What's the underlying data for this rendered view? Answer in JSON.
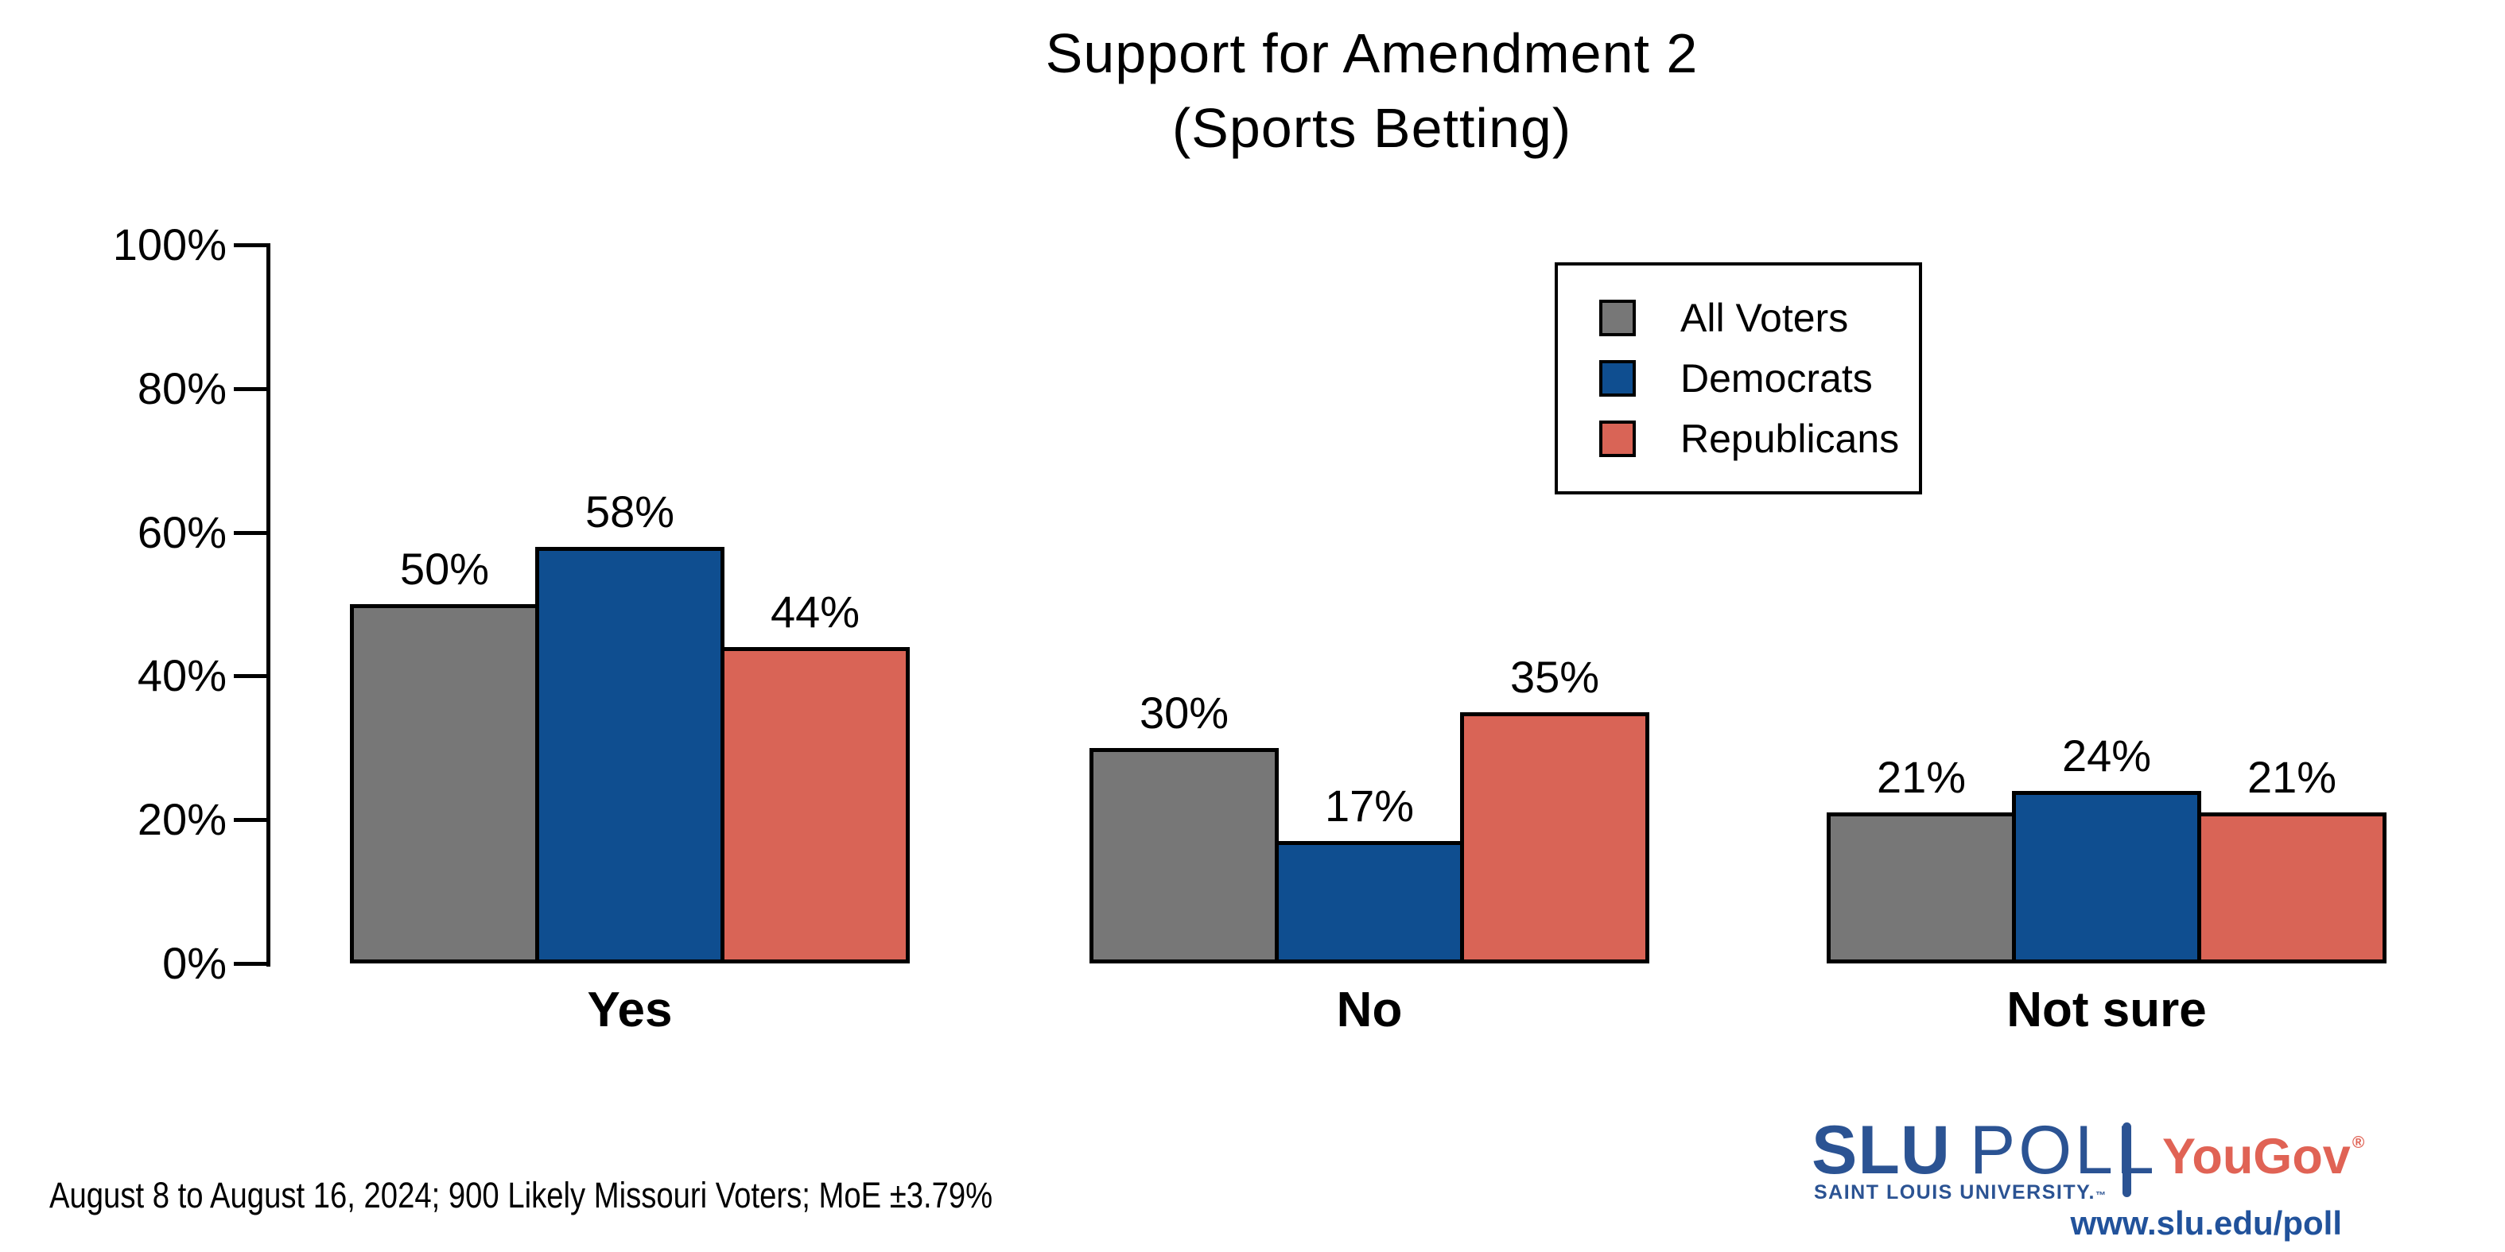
{
  "title": {
    "line1": "Support for Amendment 2",
    "line2": "(Sports Betting)"
  },
  "chart_data": {
    "type": "bar",
    "title": "Support for Amendment 2 (Sports Betting)",
    "categories": [
      "Yes",
      "No",
      "Not sure"
    ],
    "series": [
      {
        "name": "All Voters",
        "color": "#777777",
        "values": [
          50,
          30,
          21
        ]
      },
      {
        "name": "Democrats",
        "color": "#0F4E90",
        "values": [
          58,
          17,
          24
        ]
      },
      {
        "name": "Republicans",
        "color": "#D96456",
        "values": [
          44,
          35,
          21
        ]
      }
    ],
    "value_suffix": "%",
    "value_labels_shown": true,
    "xlabel": "",
    "ylabel": "",
    "ylim": [
      0,
      100
    ],
    "yticks": [
      "0%",
      "20%",
      "40%",
      "60%",
      "80%",
      "100%"
    ],
    "grid": false,
    "bar_border_color": "#000000",
    "legend_position": "upper-right"
  },
  "footer": {
    "note": "August 8 to August 16, 2024; 900 Likely Missouri Voters; MoE ±3.79%"
  },
  "branding": {
    "slu": "SLU",
    "poll": "POLL",
    "university": "SAINT LOUIS UNIVERSITY.",
    "tm": "™",
    "partner": "YouGov",
    "registered": "®",
    "url": "www.slu.edu/poll",
    "slu_blue": "#2B5393",
    "yougov_red": "#E06355"
  }
}
